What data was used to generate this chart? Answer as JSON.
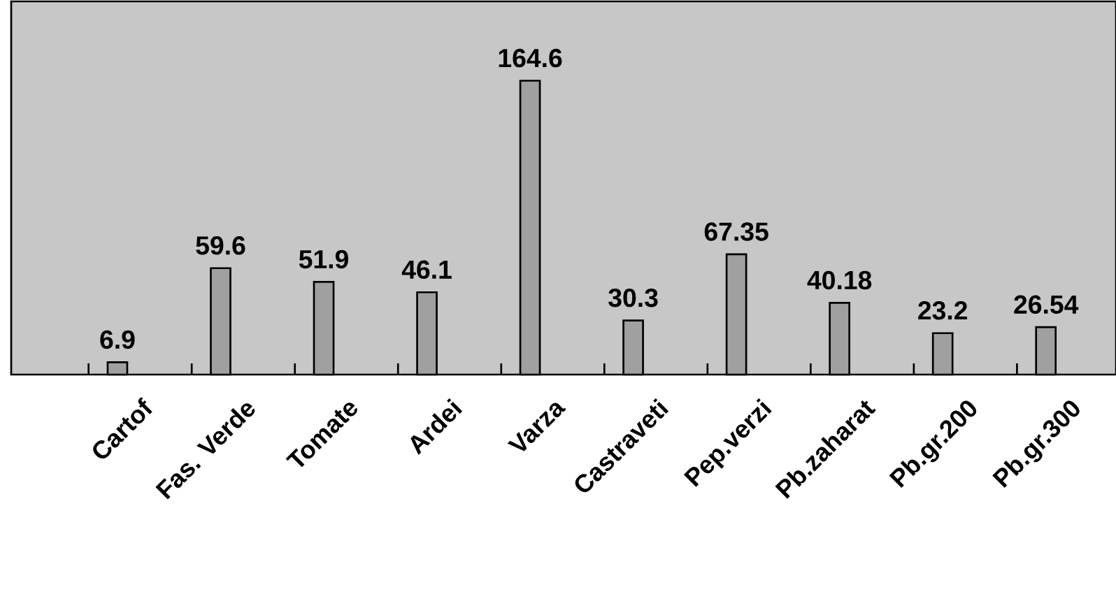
{
  "chart_data": {
    "type": "bar",
    "categories": [
      "Cartof",
      "Fas. Verde",
      "Tomate",
      "Ardei",
      "Varza",
      "Castraveti",
      "Pep.verzi",
      "Pb.zaharat",
      "Pb.gr.200",
      "Pb.gr.300"
    ],
    "values": [
      6.9,
      59.6,
      51.9,
      46.1,
      164.6,
      30.3,
      67.35,
      40.18,
      23.2,
      26.54
    ],
    "value_labels": [
      "6.9",
      "59.6",
      "51.9",
      "46.1",
      "164.6",
      "30.3",
      "67.35",
      "40.18",
      "23.2",
      "26.54"
    ],
    "color": "#a0a0a0"
  }
}
